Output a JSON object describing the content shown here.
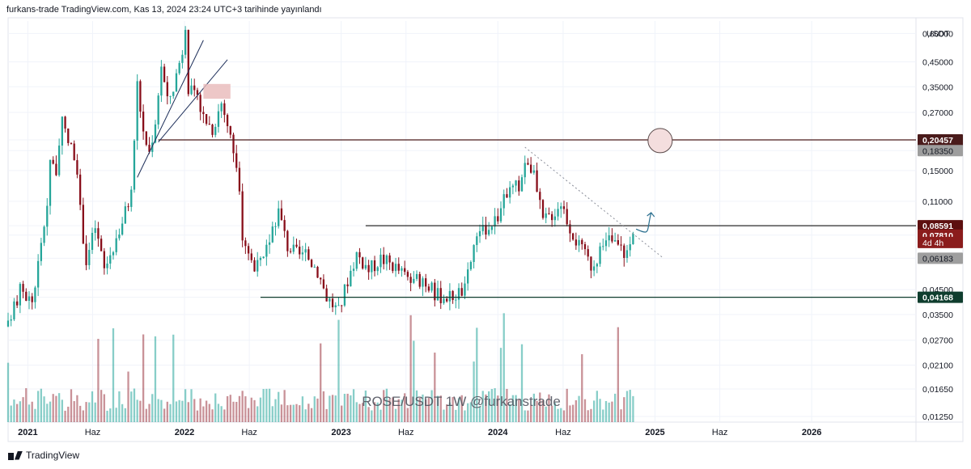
{
  "header": {
    "text": "furkans-trade TradingView.com, Kas 13, 2024 23:24 UTC+3 tarihinde yayınlandı"
  },
  "footer": {
    "brand": "TradingView"
  },
  "chart_data": {
    "type": "candlestick",
    "symbol": "ROSE/USDT",
    "interval": "1W",
    "watermark": "ROSE/USDT  1W   @furkanstrade",
    "price_axis_title": "USDT",
    "y_scale": "log",
    "y_range": [
      0.0118,
      0.68
    ],
    "y_ticks": [
      "0,60000",
      "0,45000",
      "0,35000",
      "0,27000",
      "0,20457",
      "0,18350",
      "0,15000",
      "0,11000",
      "0,08591",
      "0,07810",
      "0,06183",
      "0,04500",
      "0,04168",
      "0,03500",
      "0,02700",
      "0,02100",
      "0,01650",
      "0,01250"
    ],
    "x_range": [
      "2020-11-16",
      "2026-09-01"
    ],
    "x_ticks": [
      {
        "label": "2021",
        "date": "2021-01-01",
        "bold": true
      },
      {
        "label": "Haz",
        "date": "2021-06-01",
        "bold": false
      },
      {
        "label": "2022",
        "date": "2022-01-01",
        "bold": true
      },
      {
        "label": "Haz",
        "date": "2022-06-01",
        "bold": false
      },
      {
        "label": "2023",
        "date": "2023-01-01",
        "bold": true
      },
      {
        "label": "Haz",
        "date": "2023-06-01",
        "bold": false
      },
      {
        "label": "2024",
        "date": "2024-01-01",
        "bold": true
      },
      {
        "label": "Haz",
        "date": "2024-06-01",
        "bold": false
      },
      {
        "label": "2025",
        "date": "2025-01-01",
        "bold": true
      },
      {
        "label": "Haz",
        "date": "2025-06-01",
        "bold": false
      },
      {
        "label": "2026",
        "date": "2026-01-01",
        "bold": true
      }
    ],
    "price_path": [
      [
        "2020-11-16",
        0.031
      ],
      [
        "2020-12-14",
        0.045
      ],
      [
        "2021-01-11",
        0.04
      ],
      [
        "2021-02-01",
        0.07
      ],
      [
        "2021-02-15",
        0.11
      ],
      [
        "2021-02-22",
        0.17
      ],
      [
        "2021-03-08",
        0.15
      ],
      [
        "2021-03-22",
        0.24
      ],
      [
        "2021-04-05",
        0.2
      ],
      [
        "2021-04-19",
        0.18
      ],
      [
        "2021-05-03",
        0.1
      ],
      [
        "2021-05-17",
        0.06
      ],
      [
        "2021-06-07",
        0.085
      ],
      [
        "2021-06-28",
        0.055
      ],
      [
        "2021-07-19",
        0.07
      ],
      [
        "2021-08-09",
        0.09
      ],
      [
        "2021-08-30",
        0.12
      ],
      [
        "2021-09-13",
        0.36
      ],
      [
        "2021-09-27",
        0.22
      ],
      [
        "2021-10-11",
        0.18
      ],
      [
        "2021-10-25",
        0.25
      ],
      [
        "2021-11-08",
        0.44
      ],
      [
        "2021-11-22",
        0.3
      ],
      [
        "2021-12-06",
        0.35
      ],
      [
        "2021-12-20",
        0.45
      ],
      [
        "2022-01-03",
        0.58
      ],
      [
        "2022-01-10",
        0.35
      ],
      [
        "2022-01-31",
        0.3
      ],
      [
        "2022-02-14",
        0.26
      ],
      [
        "2022-03-07",
        0.23
      ],
      [
        "2022-03-28",
        0.3
      ],
      [
        "2022-04-11",
        0.24
      ],
      [
        "2022-05-02",
        0.16
      ],
      [
        "2022-05-16",
        0.08
      ],
      [
        "2022-06-13",
        0.055
      ],
      [
        "2022-07-04",
        0.06
      ],
      [
        "2022-07-25",
        0.085
      ],
      [
        "2022-08-08",
        0.1
      ],
      [
        "2022-08-29",
        0.07
      ],
      [
        "2022-09-19",
        0.065
      ],
      [
        "2022-10-17",
        0.062
      ],
      [
        "2022-11-07",
        0.055
      ],
      [
        "2022-11-28",
        0.042
      ],
      [
        "2022-12-26",
        0.036
      ],
      [
        "2023-01-16",
        0.05
      ],
      [
        "2023-02-06",
        0.065
      ],
      [
        "2023-03-06",
        0.055
      ],
      [
        "2023-04-03",
        0.062
      ],
      [
        "2023-05-01",
        0.058
      ],
      [
        "2023-05-29",
        0.052
      ],
      [
        "2023-06-19",
        0.048
      ],
      [
        "2023-07-10",
        0.051
      ],
      [
        "2023-08-07",
        0.043
      ],
      [
        "2023-09-11",
        0.042
      ],
      [
        "2023-10-16",
        0.045
      ],
      [
        "2023-11-06",
        0.07
      ],
      [
        "2023-12-04",
        0.085
      ],
      [
        "2024-01-01",
        0.095
      ],
      [
        "2024-01-22",
        0.12
      ],
      [
        "2024-02-19",
        0.13
      ],
      [
        "2024-03-11",
        0.17
      ],
      [
        "2024-03-25",
        0.14
      ],
      [
        "2024-04-15",
        0.09
      ],
      [
        "2024-05-13",
        0.1
      ],
      [
        "2024-05-27",
        0.11
      ],
      [
        "2024-06-17",
        0.085
      ],
      [
        "2024-07-08",
        0.07
      ],
      [
        "2024-08-05",
        0.058
      ],
      [
        "2024-08-26",
        0.065
      ],
      [
        "2024-09-16",
        0.075
      ],
      [
        "2024-10-07",
        0.07
      ],
      [
        "2024-10-28",
        0.065
      ],
      [
        "2024-11-11",
        0.078
      ]
    ],
    "levels": [
      {
        "price": 0.20457,
        "start": "2021-11-01",
        "color": "#4a1b1b"
      },
      {
        "price": 0.08591,
        "start": "2023-02-27",
        "color": "#2b2b2b"
      },
      {
        "price": 0.04168,
        "start": "2022-06-27",
        "color": "#0f3d2e"
      }
    ],
    "wedge_lines": [
      {
        "from": [
          "2021-09-13",
          0.14
        ],
        "to": [
          "2022-02-14",
          0.56
        ]
      },
      {
        "from": [
          "2021-11-01",
          0.2
        ],
        "to": [
          "2022-04-11",
          0.46
        ]
      }
    ],
    "supply_zone": {
      "from": "2022-02-14",
      "to": "2022-04-18",
      "low": 0.31,
      "high": 0.36,
      "color": "#e8b9b9"
    },
    "target_circle": {
      "date": "2025-01-13",
      "price": 0.203
    },
    "trend_line": {
      "from": [
        "2024-03-04",
        0.19
      ],
      "to": [
        "2025-01-20",
        0.062
      ]
    },
    "forecast_arrow": {
      "from": [
        "2024-11-18",
        0.083
      ],
      "to": [
        "2024-12-23",
        0.098
      ]
    },
    "price_labels": [
      {
        "text": "0,20457",
        "price": 0.20457,
        "bg": "#4a1b1b",
        "color": "#ffffff",
        "bold": true
      },
      {
        "text": "0,18350",
        "price": 0.1835,
        "bg": "#9e9e9e",
        "color": "#131722",
        "bold": false
      },
      {
        "text": "0,08591",
        "price": 0.08591,
        "bg": "#5d0f0f",
        "color": "#ffffff",
        "bold": true
      },
      {
        "text": "0,07810",
        "price": 0.0781,
        "bg": "#8b1c1c",
        "color": "#ffffff",
        "bold": true
      },
      {
        "text": "4d 4h",
        "price": 0.0725,
        "bg": "#8b1c1c",
        "color": "#ffffff",
        "bold": false
      },
      {
        "text": "0,06183",
        "price": 0.06183,
        "bg": "#9e9e9e",
        "color": "#131722",
        "bold": false
      },
      {
        "text": "0,04168",
        "price": 0.04168,
        "bg": "#0f3d2e",
        "color": "#ffffff",
        "bold": true
      }
    ],
    "colors": {
      "up": "#26a69a",
      "down": "#880e1a",
      "grid": "#f0f3fa",
      "axis": "#e0e3eb"
    }
  }
}
